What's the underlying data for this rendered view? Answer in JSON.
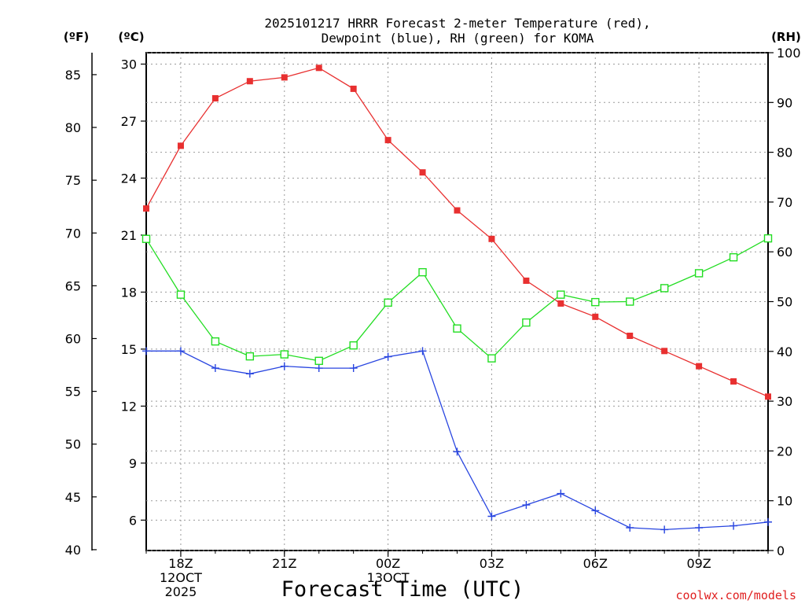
{
  "chart_data": {
    "type": "line",
    "title_line1": "2025101217 HRRR Forecast 2-meter Temperature (red),",
    "title_line2": "Dewpoint (blue), RH (green) for KOMA",
    "xlabel": "Forecast Time (UTC)",
    "watermark": "coolwx.com/models",
    "left_outer_axis_label": "(ºF)",
    "left_inner_axis_label": "(ºC)",
    "right_axis_label": "(RH)",
    "x_hours": [
      17,
      18,
      19,
      20,
      21,
      22,
      23,
      24,
      25,
      26,
      27,
      28,
      29,
      30,
      31,
      32,
      33,
      34,
      35
    ],
    "x_range": [
      17,
      35
    ],
    "x_ticks": [
      {
        "hour": 18,
        "lines": [
          "18Z",
          "12OCT",
          "2025"
        ]
      },
      {
        "hour": 21,
        "lines": [
          "21Z"
        ]
      },
      {
        "hour": 24,
        "lines": [
          "00Z",
          "13OCT"
        ]
      },
      {
        "hour": 27,
        "lines": [
          "03Z"
        ]
      },
      {
        "hour": 30,
        "lines": [
          "06Z"
        ]
      },
      {
        "hour": 33,
        "lines": [
          "09Z"
        ]
      }
    ],
    "celsius_range": [
      4.4,
      30.6
    ],
    "celsius_ticks": [
      6,
      9,
      12,
      15,
      18,
      21,
      24,
      27,
      30
    ],
    "fahrenheit_ticks": [
      40,
      45,
      50,
      55,
      60,
      65,
      70,
      75,
      80,
      85
    ],
    "rh_range": [
      0,
      100
    ],
    "rh_ticks": [
      0,
      10,
      20,
      30,
      40,
      50,
      60,
      70,
      80,
      90,
      100
    ],
    "series": [
      {
        "name": "Temperature",
        "units": "C",
        "color": "#e83030",
        "marker": "filled-square",
        "values": [
          22.4,
          25.7,
          28.2,
          29.1,
          29.3,
          29.8,
          28.7,
          26.0,
          24.3,
          22.3,
          20.8,
          18.6,
          17.4,
          16.7,
          15.7,
          14.9,
          14.1,
          13.3,
          12.5
        ]
      },
      {
        "name": "Dewpoint",
        "units": "C",
        "color": "#2845e0",
        "marker": "plus",
        "values": [
          14.9,
          14.9,
          14.0,
          13.7,
          14.1,
          14.0,
          14.0,
          14.6,
          14.9,
          9.6,
          6.2,
          6.8,
          7.4,
          6.5,
          5.6,
          5.5,
          5.6,
          5.7,
          5.9
        ]
      },
      {
        "name": "RH",
        "units": "%",
        "color": "#22dd22",
        "marker": "open-square",
        "values": [
          62.6,
          51.4,
          42.0,
          39.0,
          39.4,
          38.1,
          41.2,
          49.8,
          55.9,
          44.6,
          38.6,
          45.8,
          51.4,
          49.9,
          50.0,
          52.7,
          55.7,
          58.9,
          62.7
        ]
      }
    ]
  }
}
